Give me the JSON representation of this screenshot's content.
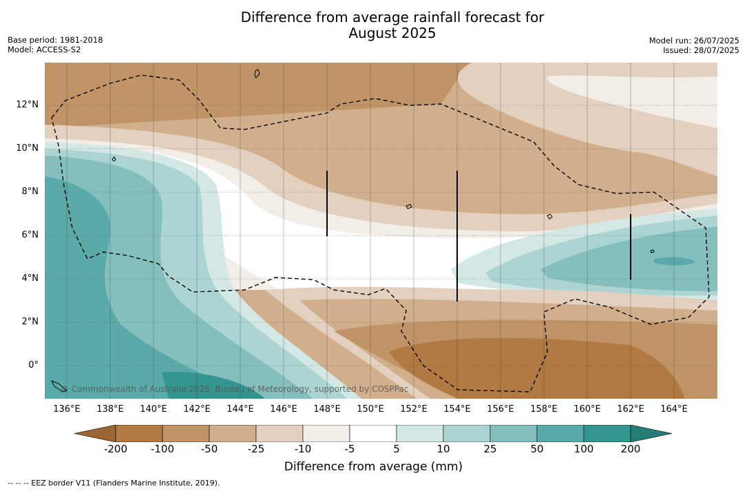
{
  "title_line1": "Difference from average rainfall forecast for",
  "title_line2": "August 2025",
  "meta_left": {
    "base_period": "Base period: 1981-2018",
    "model": "Model: ACCESS-S2"
  },
  "meta_right": {
    "model_run": "Model run: 26/07/2025",
    "issued": "Issued: 28/07/2025"
  },
  "y_ticks": [
    "12°N",
    "10°N",
    "8°N",
    "6°N",
    "4°N",
    "2°N",
    "0°"
  ],
  "x_ticks": [
    "136°E",
    "138°E",
    "140°E",
    "142°E",
    "144°E",
    "146°E",
    "148°E",
    "150°E",
    "152°E",
    "154°E",
    "156°E",
    "158°E",
    "160°E",
    "162°E",
    "164°E"
  ],
  "copyright": "© Commonwealth of Australia 2025, Bureau of Meteorology, supported by COSPPac",
  "colorbar": {
    "labels": [
      "-200",
      "-100",
      "-50",
      "-25",
      "-10",
      "-5",
      "5",
      "10",
      "25",
      "50",
      "100",
      "200"
    ],
    "colors": [
      "#9c6634",
      "#b07a42",
      "#c09467",
      "#d1ae8c",
      "#e4d0bf",
      "#f2ede6",
      "#ffffff",
      "#d3e8e5",
      "#acd4d3",
      "#84bfbe",
      "#5aaaa9",
      "#33958f",
      "#267c77"
    ],
    "title": "Difference from average (mm)"
  },
  "legend_text": "-- -- -- EEZ border V11 (Flanders Marine Institute, 2019)."
}
